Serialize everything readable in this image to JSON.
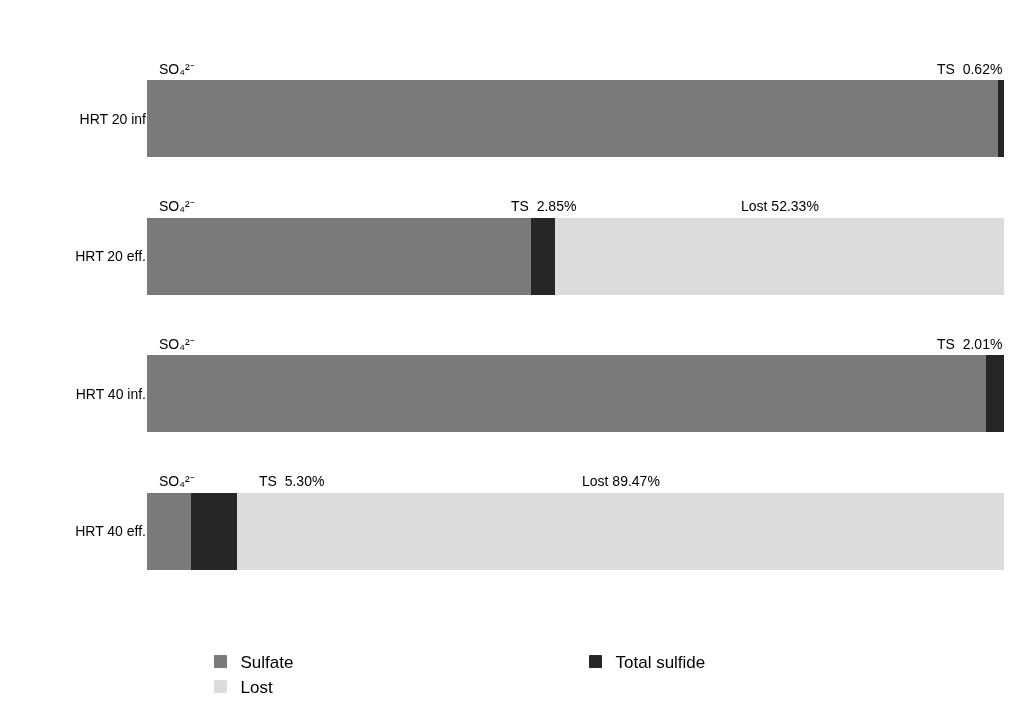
{
  "chart_data": {
    "type": "bar",
    "orientation": "horizontal",
    "stacked": true,
    "tick_labels": "y",
    "categories": [
      "HRT 20 inf",
      "HRT 20 eff.",
      "HRT 40 inf.",
      "HRT 40 eff."
    ],
    "series": [
      {
        "name": "Sulfate",
        "color": "#7a7a7a",
        "values": [
          99.38,
          44.82,
          97.99,
          5.23
        ],
        "value_labels": [
          "SO₄²⁻",
          "SO₄²⁻",
          "SO₄²⁻",
          "SO₄²⁻"
        ]
      },
      {
        "name": "Total sulfide",
        "color": "#262626",
        "values": [
          0.62,
          2.85,
          2.01,
          5.3
        ],
        "value_labels": [
          "TS  0.62%",
          "TS  2.85%",
          "TS  2.01%",
          "TS  5.30%"
        ]
      },
      {
        "name": "Lost",
        "color": "#dcdcdc",
        "values": [
          null,
          52.33,
          null,
          89.47
        ],
        "value_labels": [
          null,
          "Lost 52.33%",
          null,
          "Lost 89.47%"
        ]
      }
    ],
    "legend": "bottom",
    "grid": false
  }
}
